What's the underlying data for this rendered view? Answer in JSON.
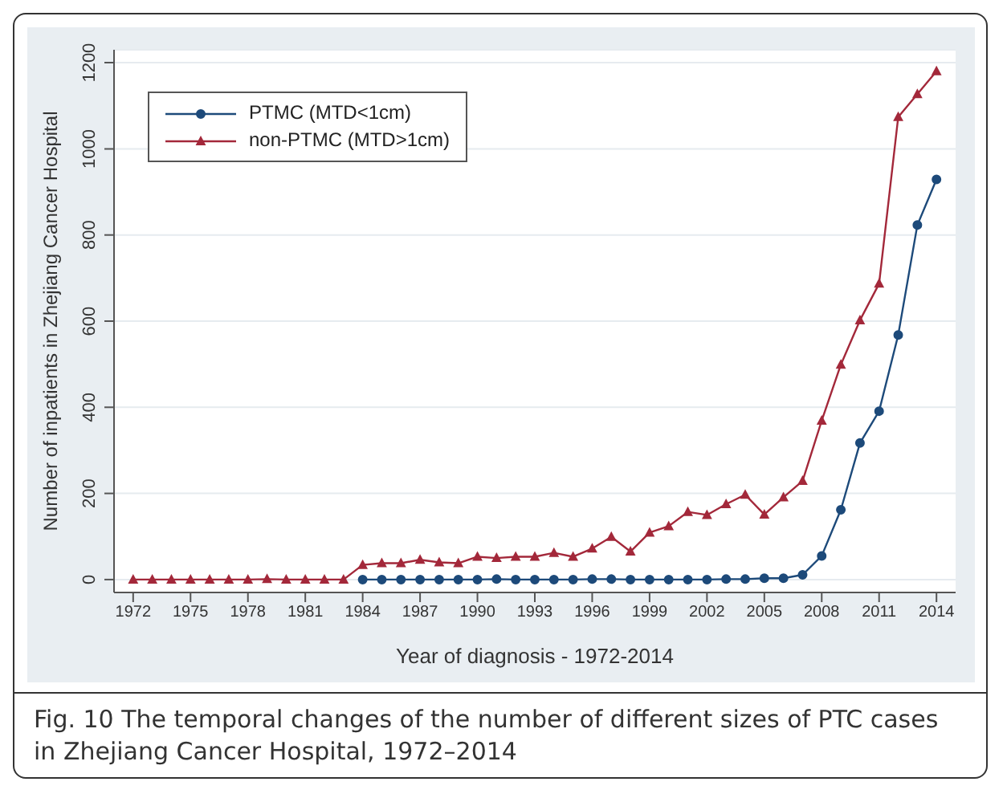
{
  "chart_data": {
    "type": "line",
    "title": "Fig. 10 The temporal changes of the number of different sizes of PTC cases in Zhejiang Cancer Hospital, 1972–2014",
    "xlabel": "Year of diagnosis - 1972-2014",
    "ylabel": "Number of inpatients in Zhejiang Cancer Hospital",
    "x": [
      1972,
      1973,
      1974,
      1975,
      1976,
      1977,
      1978,
      1979,
      1980,
      1981,
      1982,
      1983,
      1984,
      1985,
      1986,
      1987,
      1988,
      1989,
      1990,
      1991,
      1992,
      1993,
      1994,
      1995,
      1996,
      1997,
      1998,
      1999,
      2000,
      2001,
      2002,
      2003,
      2004,
      2005,
      2006,
      2007,
      2008,
      2009,
      2010,
      2011,
      2012,
      2013,
      2014
    ],
    "series": [
      {
        "name": "PTMC (MTD<1cm)",
        "color": "#1d4a7a",
        "marker": "circle",
        "values": [
          null,
          null,
          null,
          null,
          null,
          null,
          null,
          null,
          null,
          null,
          null,
          null,
          0,
          0,
          0,
          0,
          0,
          0,
          0,
          1,
          0,
          0,
          0,
          0,
          1,
          1,
          0,
          0,
          0,
          0,
          0,
          1,
          1,
          3,
          3,
          11,
          55,
          162,
          317,
          391,
          568,
          823,
          929
        ]
      },
      {
        "name": "non-PTMC (MTD>1cm)",
        "color": "#a3283a",
        "marker": "triangle",
        "values": [
          0,
          0,
          0,
          0,
          0,
          0,
          0,
          1,
          0,
          0,
          0,
          0,
          34,
          38,
          38,
          46,
          40,
          38,
          53,
          50,
          53,
          53,
          62,
          53,
          72,
          99,
          65,
          109,
          124,
          157,
          150,
          175,
          197,
          151,
          191,
          229,
          369,
          499,
          602,
          687,
          1074,
          1127,
          1180
        ]
      }
    ],
    "xlim": [
      1971,
      2015
    ],
    "xticks": [
      1972,
      1975,
      1978,
      1981,
      1984,
      1987,
      1990,
      1993,
      1996,
      1999,
      2002,
      2005,
      2008,
      2011,
      2014
    ],
    "ylim": [
      -30,
      1230
    ],
    "yticks": [
      0,
      200,
      400,
      600,
      800,
      1000,
      1200
    ],
    "grid": "y",
    "legend": "top left",
    "line_style": "solid"
  }
}
